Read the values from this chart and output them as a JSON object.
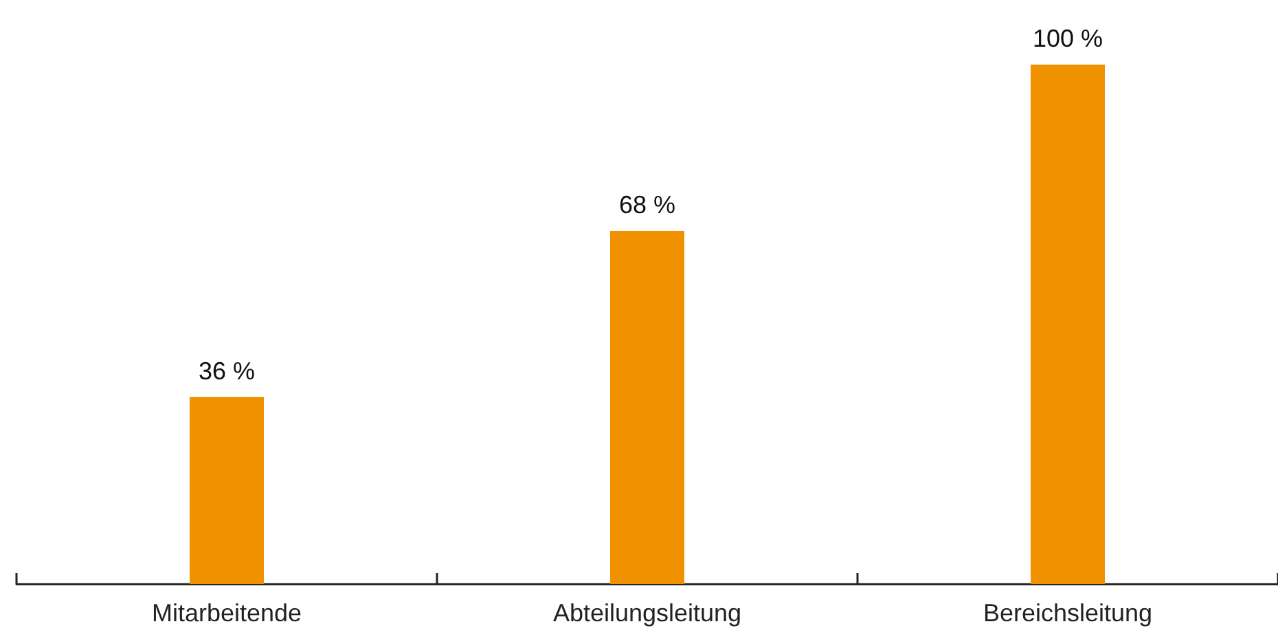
{
  "chart_data": {
    "type": "bar",
    "categories": [
      "Mitarbeitende",
      "Abteilungsleitung",
      "Bereichsleitung"
    ],
    "values": [
      36,
      68,
      100
    ],
    "value_labels": [
      "36 %",
      "68 %",
      "100 %"
    ],
    "color": "#f09100",
    "ylim": [
      0,
      100
    ],
    "tick_labels": "x"
  }
}
